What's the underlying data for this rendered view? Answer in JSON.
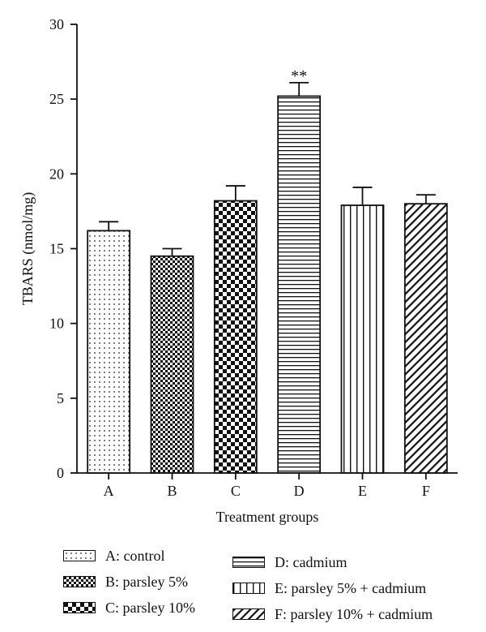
{
  "chart_data": {
    "type": "bar",
    "title": "",
    "xlabel": "Treatment groups",
    "ylabel": "TBARS (nmol/mg)",
    "ylim": [
      0,
      30
    ],
    "yticks": [
      0,
      5,
      10,
      15,
      20,
      25,
      30
    ],
    "categories": [
      "A",
      "B",
      "C",
      "D",
      "E",
      "F"
    ],
    "values": [
      16.2,
      14.5,
      18.2,
      25.2,
      17.9,
      18.0
    ],
    "errors": [
      0.6,
      0.5,
      1.0,
      0.9,
      1.2,
      0.6
    ],
    "annotations": [
      "",
      "",
      "",
      "**",
      "",
      ""
    ],
    "patterns": [
      "dots",
      "checker-fine",
      "checker-coarse",
      "horizontal-lines",
      "vertical-lines",
      "diagonal-hatch"
    ],
    "grid": false,
    "bar_color": "#ffffff",
    "line_color": "#111111"
  },
  "legend": [
    {
      "label": "A: control",
      "pattern": "dots"
    },
    {
      "label": "B: parsley 5%",
      "pattern": "checker-fine"
    },
    {
      "label": "C: parsley 10%",
      "pattern": "checker-coarse"
    },
    {
      "label": "D: cadmium",
      "pattern": "horizontal-lines"
    },
    {
      "label": "E: parsley 5% + cadmium",
      "pattern": "vertical-lines"
    },
    {
      "label": "F: parsley 10% + cadmium",
      "pattern": "diagonal-hatch"
    }
  ]
}
